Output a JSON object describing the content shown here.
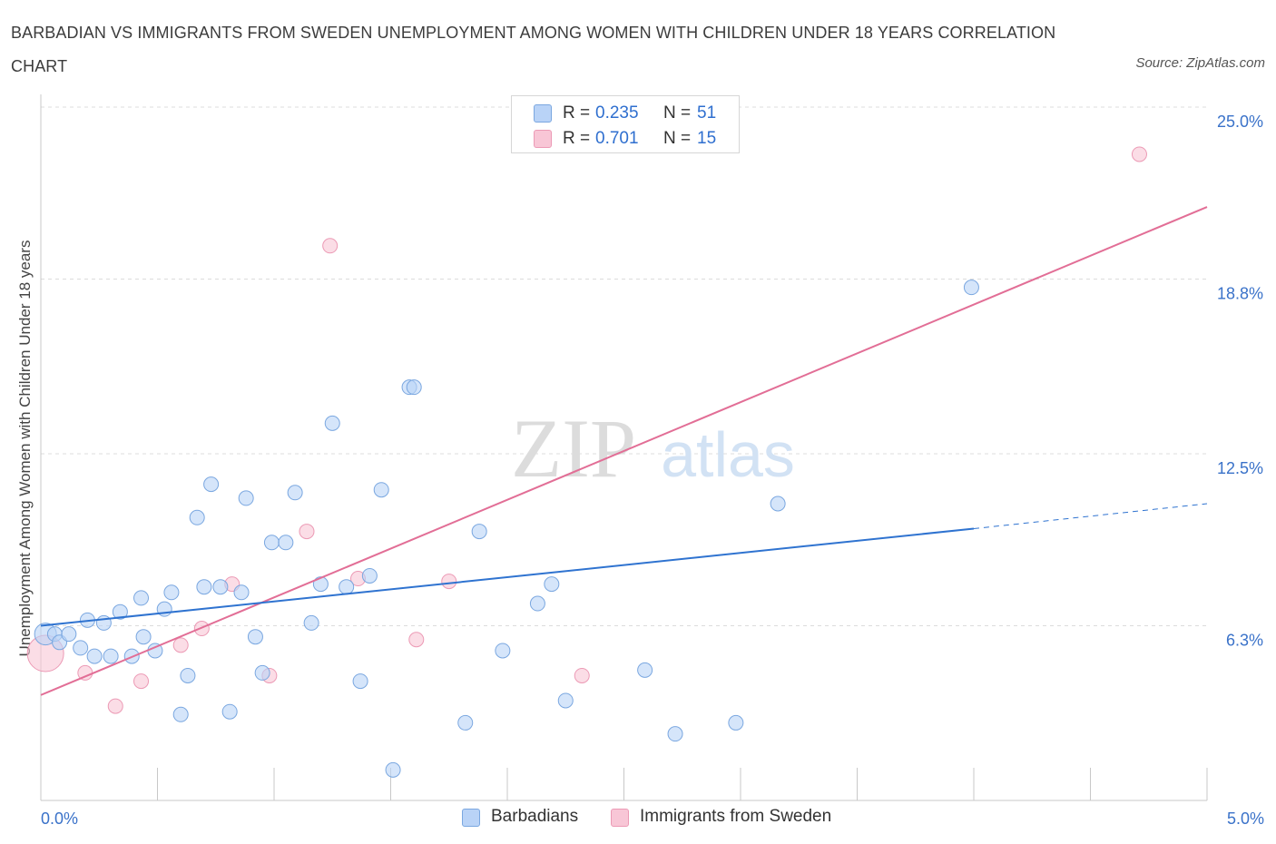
{
  "title": "BARBADIAN VS IMMIGRANTS FROM SWEDEN UNEMPLOYMENT AMONG WOMEN WITH CHILDREN UNDER 18 YEARS CORRELATION CHART",
  "source": "Source: ZipAtlas.com",
  "watermark": {
    "zip": "ZIP",
    "atlas": "atlas"
  },
  "legend": {
    "rows": [
      {
        "r_label": "R =",
        "r_value": "0.235",
        "n_label": "N =",
        "n_value": "51"
      },
      {
        "r_label": "R =",
        "r_value": "0.701",
        "n_label": "N =",
        "n_value": "15"
      }
    ]
  },
  "colors": {
    "blue_fill": "#b9d3f7",
    "blue_stroke": "#7aa7e0",
    "blue_line": "#2f73d0",
    "pink_fill": "#f8c6d6",
    "pink_stroke": "#ec9ab5",
    "pink_line": "#e26e96",
    "tick_label": "#3a72c9",
    "grid": "#dcdcdc"
  },
  "chart_data": {
    "type": "scatter",
    "title": "BARBADIAN VS IMMIGRANTS FROM SWEDEN UNEMPLOYMENT AMONG WOMEN WITH CHILDREN UNDER 18 YEARS CORRELATION CHART",
    "xlabel": "",
    "ylabel": "Unemployment Among Women with Children Under 18 years",
    "xlim": [
      0,
      5.0
    ],
    "ylim": [
      0,
      25.0
    ],
    "x_tick_labels": [
      "0.0%",
      "5.0%"
    ],
    "y_tick_labels": [
      "6.3%",
      "12.5%",
      "18.8%",
      "25.0%"
    ],
    "y_tick_values": [
      6.3,
      12.5,
      18.8,
      25.0
    ],
    "grid": "horizontal dashed",
    "legend_position": "bottom",
    "series": [
      {
        "name": "Barbadians",
        "color": "#b9d3f7",
        "r": 0.235,
        "n": 51,
        "points": [
          [
            0.02,
            6.0
          ],
          [
            0.06,
            6.0
          ],
          [
            0.08,
            5.7
          ],
          [
            0.12,
            6.0
          ],
          [
            0.17,
            5.5
          ],
          [
            0.2,
            6.5
          ],
          [
            0.23,
            5.2
          ],
          [
            0.27,
            6.4
          ],
          [
            0.3,
            5.2
          ],
          [
            0.34,
            6.8
          ],
          [
            0.39,
            5.2
          ],
          [
            0.43,
            7.3
          ],
          [
            0.44,
            5.9
          ],
          [
            0.49,
            5.4
          ],
          [
            0.53,
            6.9
          ],
          [
            0.56,
            7.5
          ],
          [
            0.6,
            3.1
          ],
          [
            0.63,
            4.5
          ],
          [
            0.67,
            10.2
          ],
          [
            0.7,
            7.7
          ],
          [
            0.73,
            11.4
          ],
          [
            0.77,
            7.7
          ],
          [
            0.81,
            3.2
          ],
          [
            0.86,
            7.5
          ],
          [
            0.88,
            10.9
          ],
          [
            0.92,
            5.9
          ],
          [
            0.95,
            4.6
          ],
          [
            0.99,
            9.3
          ],
          [
            1.05,
            9.3
          ],
          [
            1.09,
            11.1
          ],
          [
            1.16,
            6.4
          ],
          [
            1.2,
            7.8
          ],
          [
            1.25,
            13.6
          ],
          [
            1.31,
            7.7
          ],
          [
            1.37,
            4.3
          ],
          [
            1.41,
            8.1
          ],
          [
            1.46,
            11.2
          ],
          [
            1.51,
            1.1
          ],
          [
            1.58,
            14.9
          ],
          [
            1.6,
            14.9
          ],
          [
            1.82,
            2.8
          ],
          [
            1.88,
            9.7
          ],
          [
            1.98,
            5.4
          ],
          [
            2.13,
            7.1
          ],
          [
            2.19,
            7.8
          ],
          [
            2.25,
            3.6
          ],
          [
            2.59,
            4.7
          ],
          [
            2.72,
            2.4
          ],
          [
            2.98,
            2.8
          ],
          [
            3.16,
            10.7
          ],
          [
            3.99,
            18.5
          ]
        ],
        "trend": {
          "x0": 0,
          "y0": 6.3,
          "x1": 4.0,
          "y1": 9.8,
          "dashed_to_x": 5.0,
          "dashed_to_y": 10.7
        }
      },
      {
        "name": "Immigrants from Sweden",
        "color": "#f8c6d6",
        "r": 0.701,
        "n": 15,
        "points": [
          [
            0.02,
            5.3
          ],
          [
            0.19,
            4.6
          ],
          [
            0.32,
            3.4
          ],
          [
            0.43,
            4.3
          ],
          [
            0.6,
            5.6
          ],
          [
            0.69,
            6.2
          ],
          [
            0.82,
            7.8
          ],
          [
            0.98,
            4.5
          ],
          [
            1.14,
            9.7
          ],
          [
            1.24,
            20.0
          ],
          [
            1.36,
            8.0
          ],
          [
            1.61,
            5.8
          ],
          [
            1.75,
            7.9
          ],
          [
            2.32,
            4.5
          ],
          [
            4.71,
            23.3
          ]
        ],
        "trend": {
          "x0": 0,
          "y0": 3.8,
          "x1": 5.0,
          "y1": 21.4
        }
      }
    ]
  },
  "bottom_legend": [
    {
      "label": "Barbadians"
    },
    {
      "label": "Immigrants from Sweden"
    }
  ]
}
